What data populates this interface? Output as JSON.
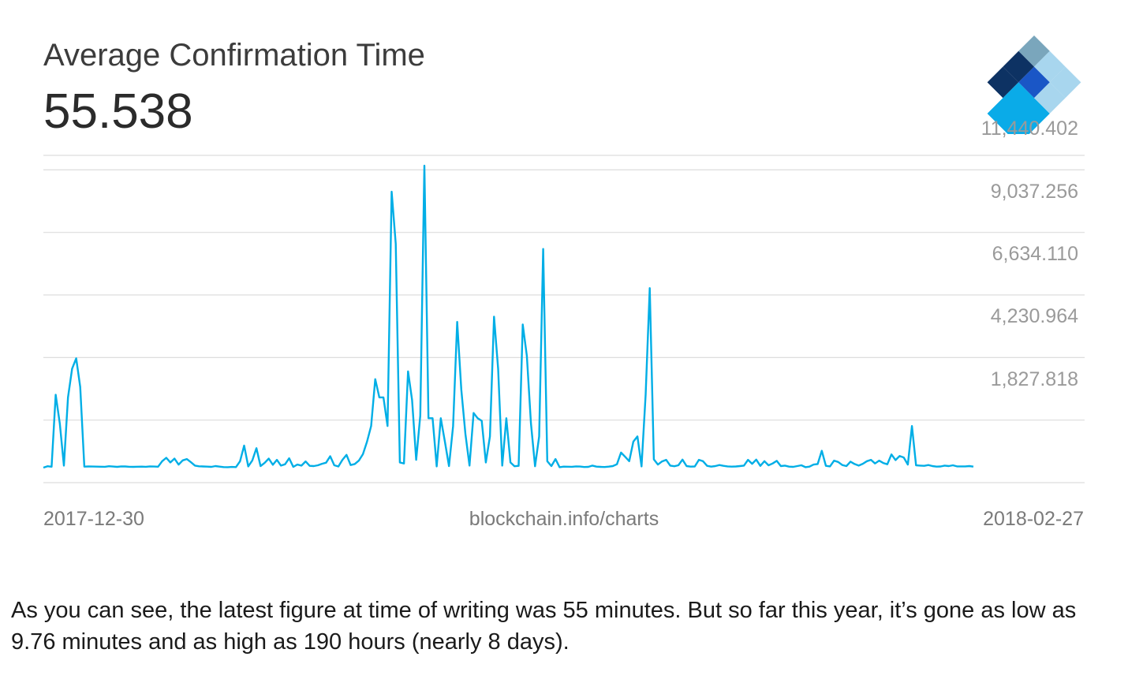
{
  "header": {
    "title": "Average Confirmation Time",
    "value": "55.538"
  },
  "colors": {
    "line": "#00aee6",
    "grid": "#dddddd",
    "logo": [
      "#0d3263",
      "#7aa6bc",
      "#1a56c6",
      "#0aabe8",
      "#a8d6ee"
    ]
  },
  "icons": {
    "logo": "blockchain-diamond-logo-icon"
  },
  "chart_data": {
    "type": "line",
    "title": "Average Confirmation Time",
    "xlabel": "",
    "ylabel": "",
    "source": "blockchain.info/charts",
    "x_labels": [
      "2017-12-30",
      "2018-02-27"
    ],
    "x_range": [
      0,
      317
    ],
    "y_ticks": [
      {
        "value": 1827.818,
        "label": "1,827.818"
      },
      {
        "value": 4230.964,
        "label": "4,230.964"
      },
      {
        "value": 6634.11,
        "label": "6,634.110"
      },
      {
        "value": 9037.256,
        "label": "9,037.256"
      },
      {
        "value": 11440.402,
        "label": "11,440.402"
      }
    ],
    "ylim": [
      -575,
      11997
    ],
    "grid": true,
    "series": [
      {
        "values": [
          0,
          55,
          37,
          2800,
          1700,
          80,
          2700,
          3800,
          4200,
          3100,
          40,
          45,
          43,
          40,
          38,
          35,
          55,
          42,
          32,
          50,
          45,
          35,
          30,
          38,
          40,
          35,
          48,
          42,
          38,
          250,
          380,
          200,
          350,
          120,
          280,
          330,
          210,
          80,
          52,
          45,
          40,
          30,
          60,
          40,
          22,
          20,
          28,
          22,
          245,
          850,
          50,
          280,
          750,
          60,
          185,
          350,
          110,
          300,
          80,
          130,
          360,
          30,
          120,
          80,
          240,
          70,
          60,
          90,
          150,
          190,
          440,
          90,
          45,
          300,
          490,
          100,
          140,
          270,
          520,
          1000,
          1600,
          3400,
          2700,
          2700,
          1600,
          10600,
          8600,
          200,
          160,
          3700,
          2600,
          300,
          2000,
          11600,
          1900,
          1900,
          50,
          1900,
          1000,
          60,
          1600,
          5600,
          3000,
          1300,
          80,
          2100,
          1900,
          1800,
          200,
          1200,
          5800,
          3800,
          80,
          1900,
          200,
          55,
          70,
          5500,
          4300,
          1700,
          55,
          1200,
          8400,
          250,
          60,
          330,
          20,
          40,
          38,
          35,
          50,
          42,
          25,
          30,
          80,
          40,
          30,
          25,
          40,
          60,
          130,
          580,
          420,
          250,
          1000,
          1200,
          50,
          2800,
          6900,
          320,
          120,
          240,
          300,
          80,
          55,
          90,
          310,
          60,
          40,
          45,
          300,
          250,
          70,
          40,
          60,
          100,
          70,
          50,
          40,
          45,
          60,
          80,
          300,
          150,
          310,
          70,
          250,
          90,
          160,
          260,
          60,
          80,
          40,
          30,
          60,
          90,
          20,
          40,
          120,
          140,
          650,
          70,
          50,
          270,
          220,
          100,
          60,
          230,
          140,
          80,
          150,
          250,
          300,
          160,
          270,
          180,
          130,
          510,
          290,
          450,
          390,
          120,
          1600,
          90,
          80,
          70,
          100,
          60,
          40,
          45,
          80,
          60,
          90,
          50,
          50,
          50,
          60,
          40
        ]
      }
    ]
  },
  "caption": "As you can see, the latest figure at time of writing was 55 minutes. But so far this year, it’s gone as low as 9.76 minutes and as high as 190 hours (nearly 8 days)."
}
